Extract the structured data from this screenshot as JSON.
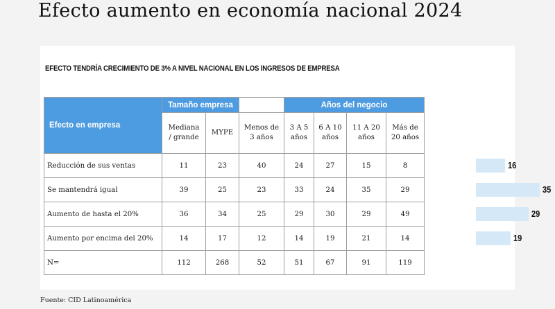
{
  "title": "Efecto aumento en economía nacional 2024",
  "subtitle": "EFECTO TENDRÍA CRECIMIENTO DE 3% A NIVEL NACIONAL EN LOS INGRESOS DE EMPRESA",
  "source": "Fuente: CID Latinoamérica",
  "colors": {
    "header_blue": "#4d9be0",
    "bar_fill": "#d5e8f7"
  },
  "chart_data": {
    "type": "table",
    "title": "EFECTO TENDRÍA CRECIMIENTO DE 3% A NIVEL NACIONAL EN LOS INGRESOS DE EMPRESA",
    "row_header": "Efecto en empresa",
    "column_groups": [
      {
        "name": "Tamaño empresa",
        "columns": [
          "Mediana / grande",
          "MYPE"
        ]
      },
      {
        "name": "",
        "columns": [
          "Menos de 3 años"
        ]
      },
      {
        "name": "Años del negocio",
        "columns": [
          "3 A 5 años",
          "6 A 10 años",
          "11 A 20 años",
          "Más de 20 años"
        ]
      }
    ],
    "columns": [
      [
        "Mediana",
        "/ grande"
      ],
      [
        "MYPE"
      ],
      [
        "Menos de",
        "3 años"
      ],
      [
        "3 A 5",
        "años"
      ],
      [
        "6 A 10",
        "años"
      ],
      [
        "11 A 20",
        "años"
      ],
      [
        "Más de",
        "20 años"
      ]
    ],
    "rows": [
      {
        "label": "Reducción de sus ventas",
        "values": [
          11,
          23,
          40,
          24,
          27,
          15,
          8
        ]
      },
      {
        "label": "Se mantendrá igual",
        "values": [
          39,
          25,
          23,
          33,
          24,
          35,
          29
        ]
      },
      {
        "label": "Aumento de hasta el 20%",
        "values": [
          36,
          34,
          25,
          29,
          30,
          29,
          49
        ]
      },
      {
        "label": "Aumento por encima del 20%",
        "values": [
          14,
          17,
          12,
          14,
          19,
          21,
          14
        ]
      },
      {
        "label": "N=",
        "values": [
          112,
          268,
          52,
          51,
          67,
          91,
          119
        ]
      }
    ],
    "total_bars": {
      "type": "bar",
      "orientation": "horizontal",
      "categories": [
        "Reducción de sus ventas",
        "Se mantendrá igual",
        "Aumento de hasta el 20%",
        "Aumento por encima del 20%"
      ],
      "values": [
        16,
        35,
        29,
        19
      ],
      "xlim": [
        0,
        35
      ]
    }
  }
}
